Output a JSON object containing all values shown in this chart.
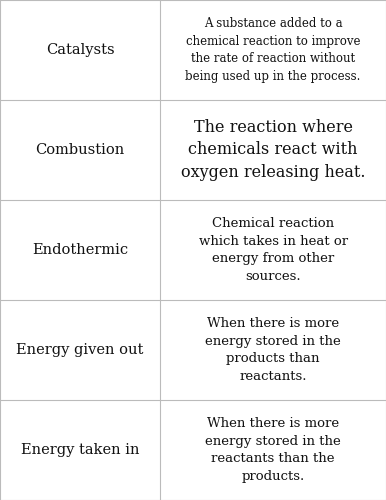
{
  "rows": [
    {
      "term": "Catalysts",
      "definition": "A substance added to a\nchemical reaction to improve\nthe rate of reaction without\nbeing used up in the process.",
      "term_fontsize": 10.5,
      "def_fontsize": 8.5
    },
    {
      "term": "Combustion",
      "definition": "The reaction where\nchemicals react with\noxygen releasing heat.",
      "term_fontsize": 10.5,
      "def_fontsize": 11.5
    },
    {
      "term": "Endothermic",
      "definition": "Chemical reaction\nwhich takes in heat or\nenergy from other\nsources.",
      "term_fontsize": 10.5,
      "def_fontsize": 9.5
    },
    {
      "term": "Energy given out",
      "definition": "When there is more\nenergy stored in the\nproducts than\nreactants.",
      "term_fontsize": 10.5,
      "def_fontsize": 9.5
    },
    {
      "term": "Energy taken in",
      "definition": "When there is more\nenergy stored in the\nreactants than the\nproducts.",
      "term_fontsize": 10.5,
      "def_fontsize": 9.5
    }
  ],
  "bg_color": "#ffffff",
  "line_color": "#bbbbbb",
  "text_color": "#111111",
  "col_split": 0.415,
  "fig_width": 3.86,
  "fig_height": 5.0,
  "dpi": 100
}
